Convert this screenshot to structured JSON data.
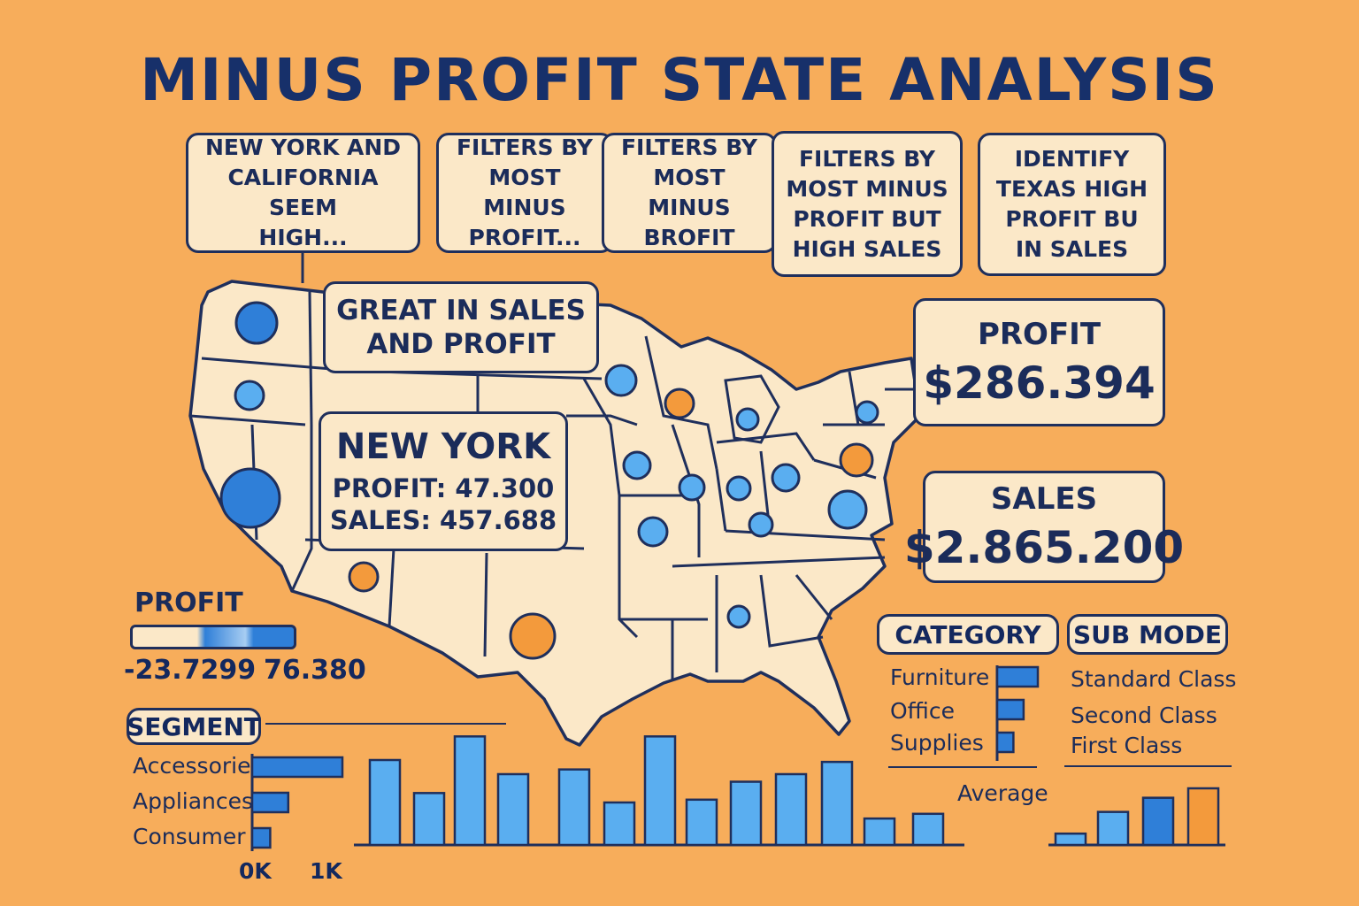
{
  "title": "MINUS PROFIT STATE ANALYSIS",
  "notes": [
    "NEW YORK AND\nCALIFORNIA SEEM\nHIGH...",
    "FILTERS BY\nMOST MINUS\nPROFIT...",
    "FILTERS BY\nMOST MINUS\nBROFIT",
    "FILTERS BY\nMOST MINUS\nPROFIT BUT\nHIGH SALES",
    "IDENTIFY\nTEXAS HIGH\nPROFIT BU\nIN SALES"
  ],
  "callout": "GREAT IN SALES\nAND PROFIT",
  "kpis": {
    "profit_label": "PROFIT",
    "profit_value": "$286.394",
    "sales_label": "SALES",
    "sales_value": "$2.865.200"
  },
  "selected_state": {
    "name": "NEW YORK",
    "profit": "PROFIT: 47.300",
    "sales": "SALES: 457.688"
  },
  "profit_legend": {
    "title": "PROFIT",
    "min": "-23.7299",
    "max": "76.380"
  },
  "segment": {
    "title": "SEGMENT",
    "items": [
      "Accessories",
      "Appliances",
      "Consumer"
    ],
    "values": [
      1.0,
      0.4,
      0.2
    ],
    "axis": [
      "0K",
      "1K"
    ]
  },
  "category": {
    "title": "CATEGORY",
    "items": [
      "Furniture",
      "Office",
      "Supplies"
    ],
    "values": [
      1.0,
      0.65,
      0.4
    ],
    "footer": "Average"
  },
  "sub_mode": {
    "title": "SUB MODE",
    "items": [
      "Standard Class",
      "Second Class",
      "First Class"
    ]
  },
  "colors": {
    "background": "#f7ad5b",
    "card": "#fbe8c8",
    "outline": "#1f2f5c",
    "bar_blue": "#5aaef0",
    "bar_dark_blue": "#2f7fd8",
    "negative_orange": "#f39a3c"
  },
  "chart_data": [
    {
      "type": "bar",
      "values": [
        9,
        5.5,
        11.5,
        7.5,
        8,
        4.5,
        11.5,
        4.8,
        6.7,
        7.5,
        8.8,
        2.8,
        3.3
      ],
      "ylim": [
        0,
        12
      ]
    },
    {
      "type": "bar",
      "values": [
        1.2,
        3.5,
        5,
        6
      ],
      "highlight_last": true,
      "ylim": [
        0,
        12
      ]
    }
  ]
}
